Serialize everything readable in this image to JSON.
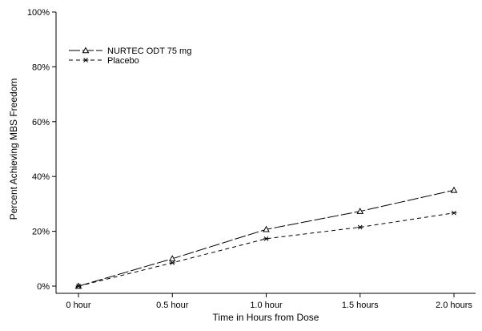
{
  "chart_data": {
    "type": "line",
    "title": "",
    "xlabel": "Time in Hours from Dose",
    "ylabel": "Percent Achieving MBS Freedom",
    "categories": [
      "0 hour",
      "0.5 hour",
      "1.0 hour",
      "1.5 hours",
      "2.0 hours"
    ],
    "x": [
      0,
      0.5,
      1.0,
      1.5,
      2.0
    ],
    "ylim": [
      0,
      100
    ],
    "yticks": [
      0,
      20,
      40,
      60,
      80,
      100
    ],
    "ytick_labels": [
      "0%",
      "20%",
      "40%",
      "60%",
      "80%",
      "100%"
    ],
    "grid": false,
    "legend_position": "top-left",
    "series": [
      {
        "name": "NURTEC ODT 75 mg",
        "values": [
          0,
          10,
          20.7,
          27.3,
          35
        ],
        "line_style": "long-dash",
        "marker": "triangle",
        "color": "#000000"
      },
      {
        "name": "Placebo",
        "values": [
          0,
          8.5,
          17.3,
          21.5,
          26.7
        ],
        "line_style": "short-dash",
        "marker": "asterisk",
        "color": "#000000"
      }
    ]
  }
}
